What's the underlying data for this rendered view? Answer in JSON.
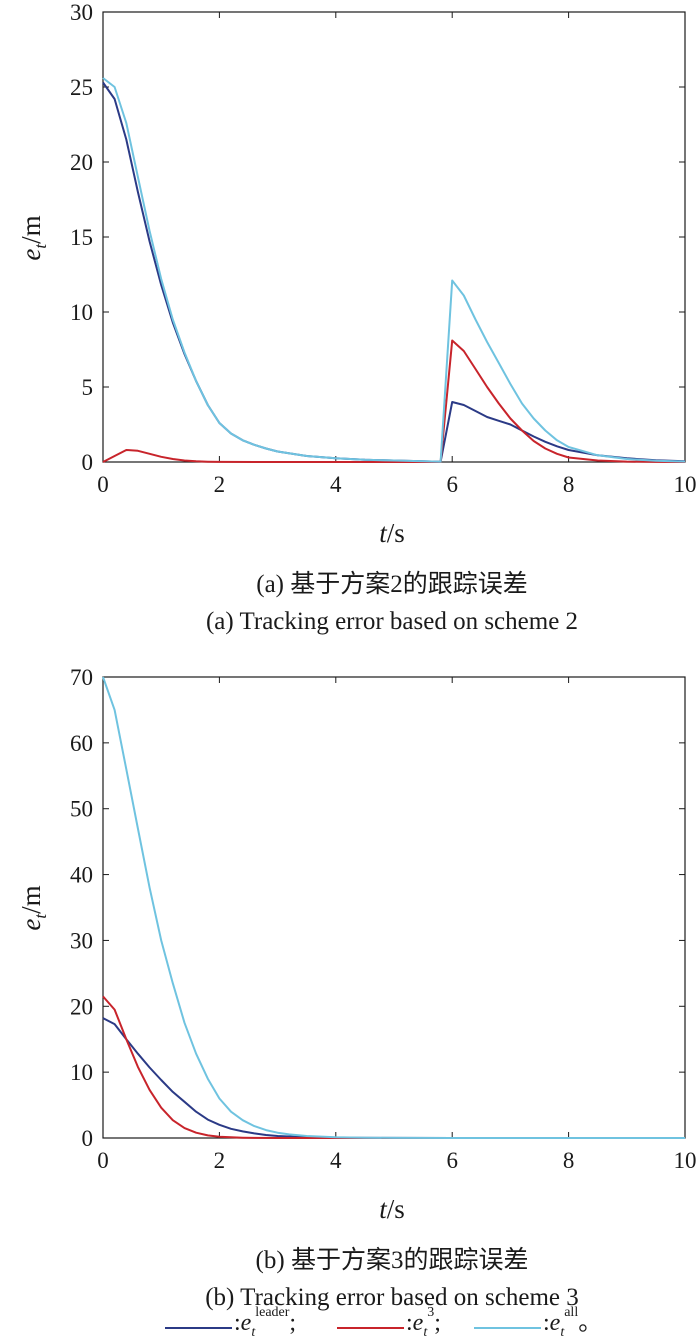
{
  "chart_data": [
    {
      "type": "line",
      "caption_cn": "(a) 基于方案2的跟踪误差",
      "caption_en": "(a) Tracking error based on scheme 2",
      "xlabel_var": "t",
      "xlabel_unit": "/s",
      "ylabel_var": "e",
      "ylabel_sub": "t",
      "ylabel_unit": "/m",
      "xlim": [
        0,
        10
      ],
      "ylim": [
        0,
        30
      ],
      "xticks": [
        0,
        2,
        4,
        6,
        8,
        10
      ],
      "yticks": [
        0,
        5,
        10,
        15,
        20,
        25,
        30
      ],
      "series": [
        {
          "key": "leader",
          "color": "#2b3a86",
          "x": [
            0,
            0.2,
            0.4,
            0.6,
            0.8,
            1.0,
            1.2,
            1.4,
            1.6,
            1.8,
            2.0,
            2.2,
            2.4,
            2.6,
            2.8,
            3.0,
            3.5,
            4.0,
            4.5,
            5.0,
            5.5,
            5.8,
            6.0,
            6.2,
            6.4,
            6.6,
            6.8,
            7.0,
            7.2,
            7.4,
            7.6,
            7.8,
            8.0,
            8.5,
            9.0,
            9.5,
            10.0
          ],
          "y": [
            25.3,
            24.2,
            21.5,
            18.0,
            14.7,
            11.8,
            9.3,
            7.2,
            5.4,
            3.8,
            2.6,
            1.9,
            1.45,
            1.15,
            0.9,
            0.7,
            0.4,
            0.25,
            0.15,
            0.1,
            0.05,
            0.02,
            4.0,
            3.8,
            3.4,
            3.0,
            2.75,
            2.5,
            2.1,
            1.7,
            1.35,
            1.05,
            0.8,
            0.45,
            0.25,
            0.12,
            0.05
          ]
        },
        {
          "key": "e3",
          "color": "#c8242b",
          "x": [
            0,
            0.2,
            0.4,
            0.6,
            0.8,
            1.0,
            1.2,
            1.4,
            1.6,
            1.8,
            2.0,
            3.0,
            4.0,
            5.0,
            5.8,
            6.0,
            6.2,
            6.4,
            6.6,
            6.8,
            7.0,
            7.2,
            7.4,
            7.6,
            7.8,
            8.0,
            8.5,
            9.0,
            9.5,
            10.0
          ],
          "y": [
            0,
            0.4,
            0.8,
            0.75,
            0.55,
            0.35,
            0.2,
            0.1,
            0.05,
            0.02,
            0.01,
            0,
            0,
            0,
            0,
            8.1,
            7.4,
            6.2,
            5.0,
            3.9,
            2.9,
            2.1,
            1.4,
            0.9,
            0.55,
            0.3,
            0.1,
            0.03,
            0.01,
            0
          ]
        },
        {
          "key": "all",
          "color": "#6fc3e0",
          "x": [
            0,
            0.2,
            0.4,
            0.6,
            0.8,
            1.0,
            1.2,
            1.4,
            1.6,
            1.8,
            2.0,
            2.2,
            2.4,
            2.6,
            2.8,
            3.0,
            3.5,
            4.0,
            4.5,
            5.0,
            5.5,
            5.8,
            6.0,
            6.2,
            6.4,
            6.6,
            6.8,
            7.0,
            7.2,
            7.4,
            7.6,
            7.8,
            8.0,
            8.5,
            9.0,
            9.5,
            10.0
          ],
          "y": [
            25.6,
            25.0,
            22.6,
            19.0,
            15.4,
            12.2,
            9.5,
            7.3,
            5.4,
            3.8,
            2.6,
            1.9,
            1.45,
            1.15,
            0.9,
            0.7,
            0.4,
            0.25,
            0.15,
            0.1,
            0.05,
            0.02,
            12.1,
            11.1,
            9.5,
            8.0,
            6.6,
            5.2,
            3.9,
            2.9,
            2.1,
            1.45,
            1.0,
            0.45,
            0.2,
            0.08,
            0.03
          ]
        }
      ]
    },
    {
      "type": "line",
      "caption_cn": "(b) 基于方案3的跟踪误差",
      "caption_en": "(b) Tracking error based on scheme 3",
      "xlabel_var": "t",
      "xlabel_unit": "/s",
      "ylabel_var": "e",
      "ylabel_sub": "t",
      "ylabel_unit": "/m",
      "xlim": [
        0,
        10
      ],
      "ylim": [
        0,
        70
      ],
      "xticks": [
        0,
        2,
        4,
        6,
        8,
        10
      ],
      "yticks": [
        0,
        10,
        20,
        30,
        40,
        50,
        60,
        70
      ],
      "series": [
        {
          "key": "leader",
          "color": "#2b3a86",
          "x": [
            0,
            0.2,
            0.4,
            0.6,
            0.8,
            1.0,
            1.2,
            1.4,
            1.6,
            1.8,
            2.0,
            2.2,
            2.4,
            2.6,
            2.8,
            3.0,
            3.5,
            4.0,
            5.0,
            6.0,
            8.0,
            10.0
          ],
          "y": [
            18.2,
            17.3,
            15.0,
            12.8,
            10.7,
            8.8,
            7.0,
            5.5,
            4.0,
            2.8,
            2.0,
            1.4,
            1.0,
            0.7,
            0.45,
            0.3,
            0.12,
            0.05,
            0.01,
            0,
            0,
            0
          ]
        },
        {
          "key": "e3",
          "color": "#c8242b",
          "x": [
            0,
            0.2,
            0.4,
            0.6,
            0.8,
            1.0,
            1.2,
            1.4,
            1.6,
            1.8,
            2.0,
            2.2,
            2.4,
            2.6,
            3.0,
            4.0,
            6.0,
            8.0,
            10.0
          ],
          "y": [
            21.5,
            19.5,
            15.0,
            10.8,
            7.3,
            4.6,
            2.7,
            1.5,
            0.8,
            0.4,
            0.2,
            0.1,
            0.05,
            0.02,
            0,
            0,
            0,
            0,
            0
          ]
        },
        {
          "key": "all",
          "color": "#6fc3e0",
          "x": [
            0,
            0.2,
            0.4,
            0.6,
            0.8,
            1.0,
            1.2,
            1.4,
            1.6,
            1.8,
            2.0,
            2.2,
            2.4,
            2.6,
            2.8,
            3.0,
            3.2,
            3.5,
            4.0,
            4.5,
            5.0,
            6.0,
            8.0,
            10.0
          ],
          "y": [
            70.0,
            65.0,
            56.0,
            47.0,
            38.0,
            30.0,
            23.5,
            17.5,
            12.8,
            9.0,
            6.0,
            4.0,
            2.7,
            1.8,
            1.2,
            0.8,
            0.55,
            0.3,
            0.12,
            0.05,
            0.02,
            0,
            0,
            0
          ]
        }
      ]
    }
  ],
  "legend": [
    {
      "key": "leader",
      "color": "#2b3a86",
      "prefix": ":",
      "var": "e",
      "sub": "t",
      "sup": "leader",
      "suffix": ";"
    },
    {
      "key": "e3",
      "color": "#c8242b",
      "prefix": ":",
      "var": "e",
      "sub": "t",
      "sup": "3",
      "suffix": ";"
    },
    {
      "key": "all",
      "color": "#6fc3e0",
      "prefix": ":",
      "var": "e",
      "sub": "t",
      "sup": "all",
      "suffix": "。"
    }
  ]
}
